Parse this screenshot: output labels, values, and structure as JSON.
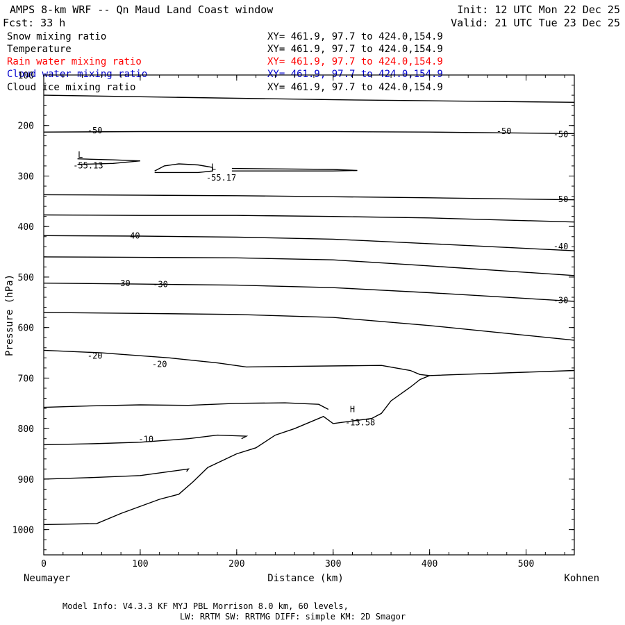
{
  "header": {
    "title": "AMPS 8-km WRF -- Qn Maud Land Coast window",
    "init": "Init: 12 UTC Mon 22 Dec 25",
    "fcst": "Fcst:   33 h",
    "valid": "Valid: 21 UTC Tue 23 Dec 25"
  },
  "legend": [
    {
      "name": "Snow mixing ratio",
      "xy": "XY= 461.9, 97.7 to 424.0,154.9",
      "color": "#000000"
    },
    {
      "name": "Temperature",
      "xy": "XY= 461.9, 97.7 to 424.0,154.9",
      "color": "#000000"
    },
    {
      "name": "Rain water mixing ratio",
      "xy": "XY= 461.9, 97.7 to 424.0,154.9",
      "color": "#ff0000"
    },
    {
      "name": "Cloud water mixing ratio",
      "xy": "XY= 461.9, 97.7 to 424.0,154.9",
      "color": "#0000cc"
    },
    {
      "name": "Cloud ice mixing ratio",
      "xy": "XY= 461.9, 97.7 to 424.0,154.9",
      "color": "#000000"
    }
  ],
  "footer": {
    "line1": "Model Info: V4.3.3   KF      MYJ PBL  Morrison              8.0 km,  60 levels,",
    "line2": "LW: RRTM SW: RRTMG   DIFF: simple KM: 2D Smagor"
  },
  "chart_data": {
    "type": "line",
    "xlabel": "Distance (km)",
    "ylabel": "Pressure (hPa)",
    "xlim": [
      0,
      550
    ],
    "ylim": [
      1050,
      100
    ],
    "x_ticks": [
      0,
      100,
      200,
      300,
      400,
      500
    ],
    "y_ticks": [
      100,
      200,
      300,
      400,
      500,
      600,
      700,
      800,
      900,
      1000
    ],
    "start_label": "Neumayer",
    "end_label": "Kohnen",
    "series": [
      {
        "x": [
          0,
          100,
          200,
          300,
          400,
          550
        ],
        "y": [
          140,
          143,
          146,
          149,
          151,
          154
        ]
      },
      {
        "x": [
          0,
          100,
          200,
          300,
          400,
          550
        ],
        "y": [
          213,
          212,
          212,
          212,
          213,
          216
        ]
      },
      {
        "x": [
          0,
          100,
          200,
          300,
          400,
          550
        ],
        "y": [
          337,
          338,
          339,
          341,
          343,
          347
        ]
      },
      {
        "x": [
          0,
          100,
          200,
          300,
          400,
          550
        ],
        "y": [
          377,
          378,
          378,
          380,
          383,
          391
        ]
      },
      {
        "x": [
          0,
          100,
          200,
          300,
          400,
          550
        ],
        "y": [
          418,
          419,
          421,
          425,
          434,
          448
        ]
      },
      {
        "x": [
          0,
          100,
          200,
          300,
          400,
          550
        ],
        "y": [
          460,
          461,
          462,
          466,
          478,
          497
        ]
      },
      {
        "x": [
          0,
          100,
          200,
          300,
          400,
          550
        ],
        "y": [
          512,
          514,
          516,
          521,
          531,
          548
        ]
      },
      {
        "x": [
          0,
          100,
          200,
          300,
          400,
          550
        ],
        "y": [
          570,
          572,
          574,
          580,
          596,
          625
        ]
      },
      {
        "x": [
          0,
          60,
          80,
          130,
          180,
          210,
          250,
          350,
          380,
          390,
          400,
          550
        ],
        "y": [
          645,
          650,
          653,
          660,
          670,
          678,
          677,
          675,
          685,
          693,
          695,
          685
        ]
      },
      {
        "x": [
          0,
          50,
          100,
          150,
          200,
          250,
          285,
          295
        ],
        "y": [
          758,
          755,
          753,
          754,
          750,
          749,
          752,
          762
        ]
      },
      {
        "x": [
          0,
          50,
          100,
          150,
          180,
          210,
          205
        ],
        "y": [
          832,
          830,
          827,
          820,
          813,
          815,
          820
        ]
      },
      {
        "x": [
          0,
          50,
          100,
          150,
          148
        ],
        "y": [
          900,
          897,
          893,
          880,
          885
        ]
      },
      {
        "x": [
          0,
          55,
          80,
          120,
          140,
          155,
          170,
          200,
          220,
          240,
          260,
          290,
          300,
          320,
          340,
          350,
          360,
          380,
          390,
          400
        ],
        "y": [
          990,
          988,
          968,
          940,
          930,
          905,
          877,
          850,
          838,
          813,
          800,
          776,
          790,
          785,
          780,
          770,
          745,
          718,
          703,
          695
        ]
      },
      {
        "x": [
          35,
          72,
          100,
          72,
          35
        ],
        "y": [
          266,
          268,
          270,
          275,
          277
        ]
      },
      {
        "x": [
          115,
          125,
          140,
          160,
          175,
          175,
          160,
          140,
          115
        ],
        "y": [
          290,
          280,
          276,
          278,
          283,
          290,
          293,
          293,
          293
        ]
      },
      {
        "x": [
          195,
          250,
          300,
          325,
          300,
          250,
          195
        ],
        "y": [
          285,
          286,
          287,
          289,
          290,
          290,
          290
        ]
      }
    ],
    "contour_labels": [
      {
        "text": "-50",
        "x": 53,
        "y": 211
      },
      {
        "text": "-50",
        "x": 477,
        "y": 212
      },
      {
        "text": "-50",
        "x": 536,
        "y": 218
      },
      {
        "text": "-50",
        "x": 536,
        "y": 347
      },
      {
        "text": "-40",
        "x": 92,
        "y": 419
      },
      {
        "text": "-40",
        "x": 536,
        "y": 440
      },
      {
        "text": "-30",
        "x": 82,
        "y": 513
      },
      {
        "text": "-30",
        "x": 121,
        "y": 515
      },
      {
        "text": "-30",
        "x": 536,
        "y": 547
      },
      {
        "text": "-20",
        "x": 53,
        "y": 657
      },
      {
        "text": "-20",
        "x": 120,
        "y": 673
      },
      {
        "text": "-10",
        "x": 106,
        "y": 822
      },
      {
        "text": "L",
        "x": 38,
        "y": 259
      },
      {
        "text": "-55.13",
        "x": 46,
        "y": 280
      },
      {
        "text": "L",
        "x": 176,
        "y": 283
      },
      {
        "text": "-55.17",
        "x": 184,
        "y": 304
      },
      {
        "text": "H",
        "x": 320,
        "y": 763
      },
      {
        "text": "-13.58",
        "x": 328,
        "y": 789
      }
    ]
  }
}
